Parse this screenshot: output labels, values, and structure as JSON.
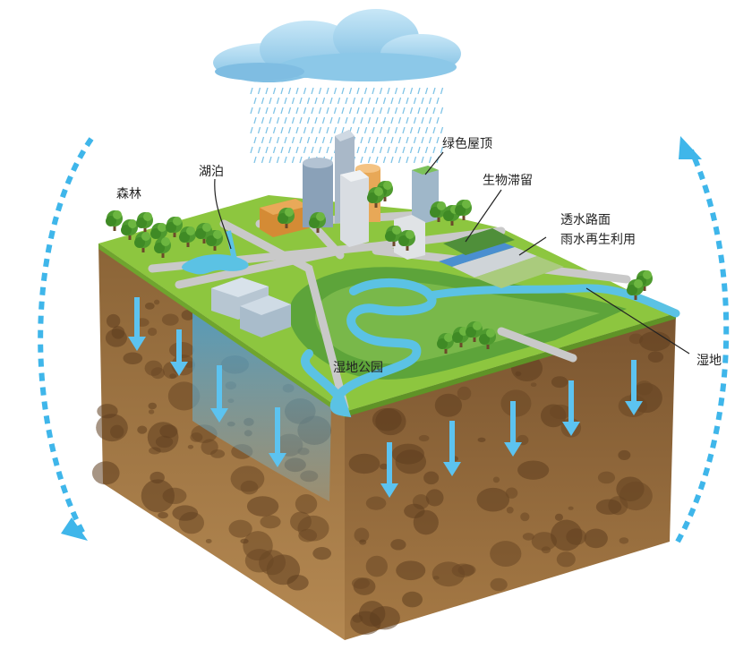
{
  "labels": {
    "forest": "森林",
    "lake": "湖泊",
    "green_roof": "绿色屋顶",
    "bioretention": "生物滞留",
    "permeable_pavement": "透水路面",
    "rainwater_reuse": "雨水再生利用",
    "wetland": "湿地",
    "wetland_park": "湿地公园"
  },
  "colors": {
    "cycle_arrow": "#3fb6ea",
    "infiltration_arrow": "#5cc3f0",
    "grass": "#8dc63f",
    "soil": "#8a6136",
    "water": "#58c3e6",
    "cloud": "#9fd0ec",
    "rain": "#7ec3e6"
  },
  "icons": [
    "cloud-icon",
    "rain-icon",
    "building-icon",
    "tree-icon",
    "arrow-down-icon",
    "dashed-cycle-arrow-icon"
  ]
}
